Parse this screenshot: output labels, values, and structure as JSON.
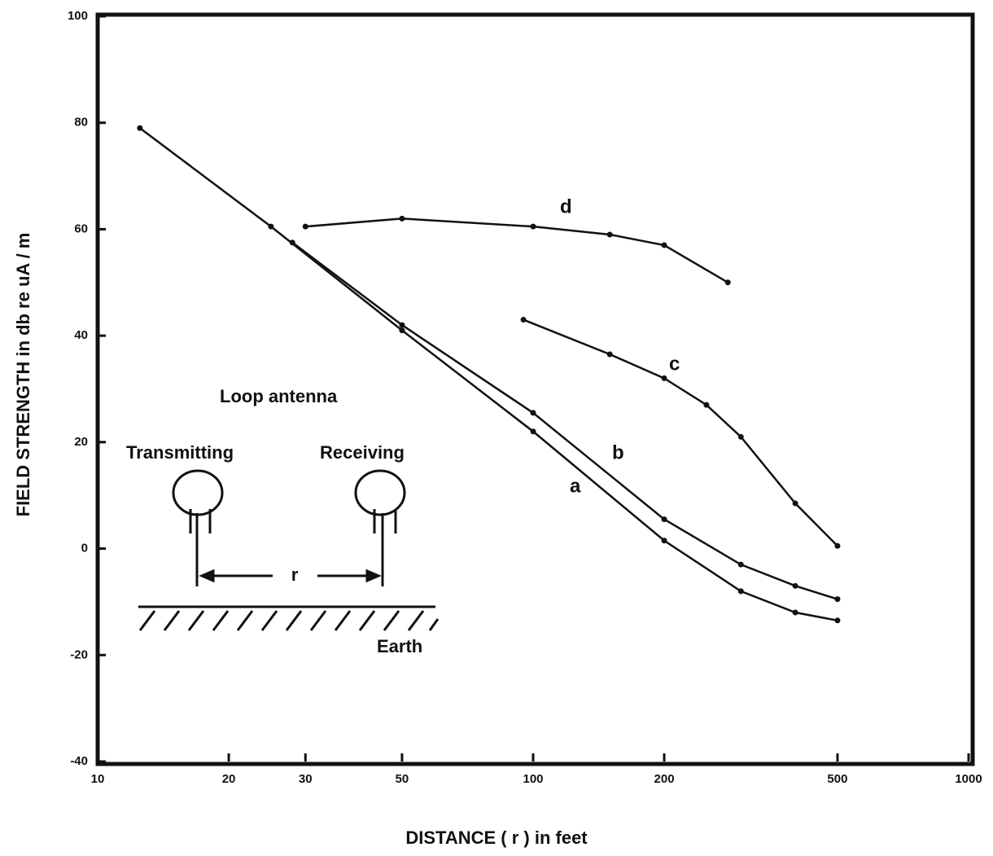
{
  "chart_data": {
    "type": "line",
    "x_label": "DISTANCE ( r ) in feet",
    "y_label": "FIELD STRENGTH in db re uA / m",
    "xscale": "log",
    "xlim": [
      10,
      1000
    ],
    "xticks": [
      10,
      20,
      30,
      50,
      100,
      200,
      500,
      1000
    ],
    "ylim": [
      -40,
      100
    ],
    "yticks": [
      -40,
      -20,
      0,
      20,
      40,
      60,
      80,
      100
    ],
    "grid": false,
    "series": [
      {
        "name": "a",
        "color": "#111111",
        "x": [
          12.5,
          25,
          50,
          100,
          200,
          300,
          400,
          500
        ],
        "values": [
          79,
          60.5,
          41,
          22,
          1.5,
          -8,
          -12,
          -13.5
        ]
      },
      {
        "name": "b",
        "color": "#111111",
        "x": [
          28,
          50,
          100,
          200,
          300,
          400,
          500
        ],
        "values": [
          57.5,
          42,
          25.5,
          5.5,
          -3,
          -7,
          -9.5
        ]
      },
      {
        "name": "c",
        "color": "#111111",
        "x": [
          95,
          150,
          200,
          250,
          300,
          400,
          500
        ],
        "values": [
          43,
          36.5,
          32,
          27,
          21,
          8.5,
          0.5
        ]
      },
      {
        "name": "d",
        "color": "#111111",
        "x": [
          30,
          50,
          100,
          150,
          200,
          280
        ],
        "values": [
          60.5,
          62,
          60.5,
          59,
          57,
          50
        ]
      }
    ],
    "inset": {
      "title": "Loop antenna",
      "left": "Transmitting",
      "right": "Receiving",
      "distance": "r",
      "ground": "Earth"
    }
  }
}
